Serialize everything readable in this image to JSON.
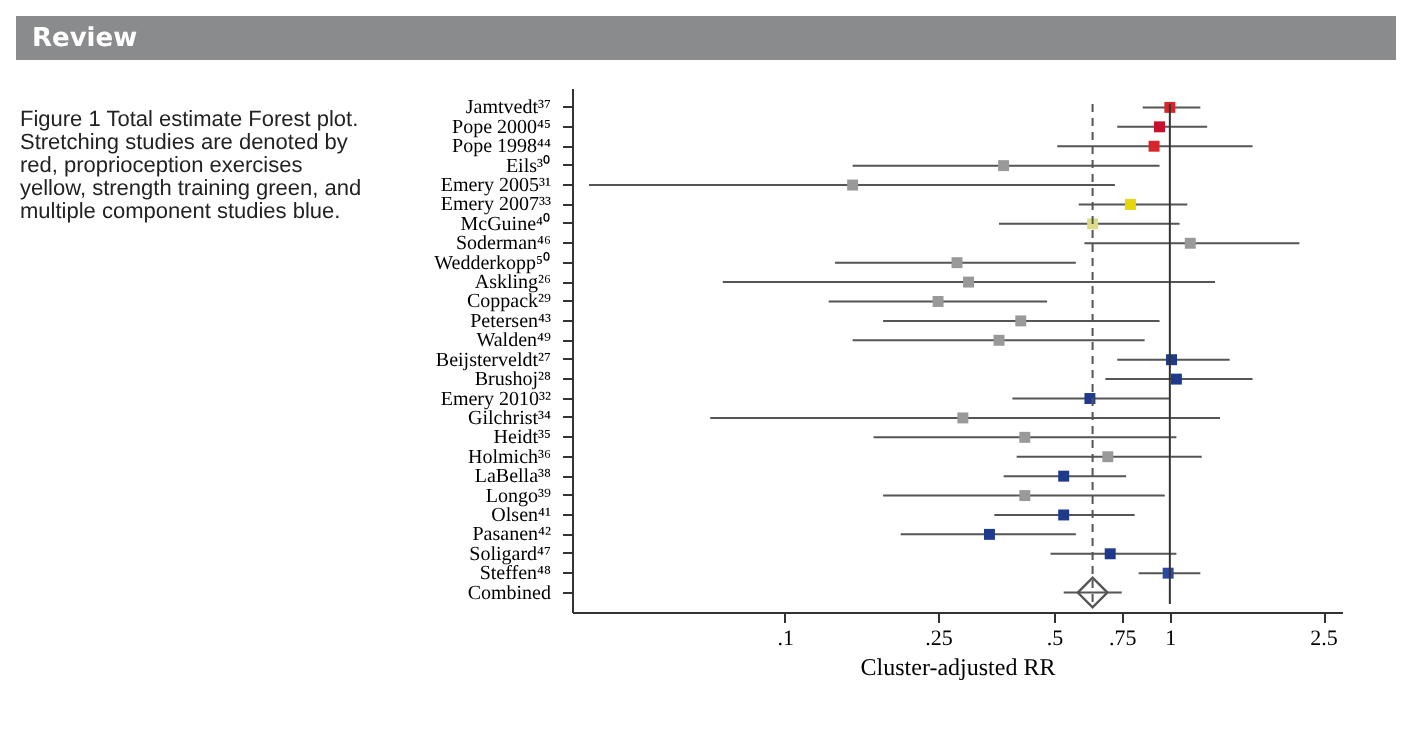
{
  "chart_data": {
    "type": "scatter",
    "orientation": "horizontal",
    "log": "x",
    "xlabel": "Cluster-adjusted RR",
    "grid": false,
    "categories": [
      "Jamtvedt³⁷",
      "Pope 2000⁴⁵",
      "Pope 1998⁴⁴",
      "Eils³⁰",
      "Emery 2005³¹",
      "Emery 2007³³",
      "McGuine⁴⁰",
      "Soderman⁴⁶",
      "Wedderkopp⁵⁰",
      "Askling²⁶",
      "Coppack²⁹",
      "Petersen⁴³",
      "Walden⁴⁹",
      "Beijsterveldt²⁷",
      "Brushoj²⁸",
      "Emery 2010³²",
      "Gilchrist³⁴",
      "Heidt³⁵",
      "Holmich³⁶",
      "LaBella³⁸",
      "Longo³⁹",
      "Olsen⁴¹",
      "Pasanen⁴²",
      "Soligard⁴⁷",
      "Steffen⁴⁸",
      "Combined"
    ],
    "series": [
      {
        "marker": "square",
        "values": [
          1.0,
          0.94,
          0.91,
          0.37,
          0.15,
          0.79,
          0.63,
          1.13,
          0.28,
          0.3,
          0.25,
          0.41,
          0.36,
          1.01,
          1.04,
          0.62,
          0.29,
          0.42,
          0.69,
          0.53,
          0.42,
          0.53,
          0.34,
          0.7,
          0.99,
          null
        ],
        "errors": [
          [
            0.85,
            1.2
          ],
          [
            0.73,
            1.25
          ],
          [
            0.51,
            1.64
          ],
          [
            0.15,
            0.94
          ],
          [
            0.031,
            0.72
          ],
          [
            0.58,
            1.11
          ],
          [
            0.36,
            1.06
          ],
          [
            0.6,
            2.17
          ],
          [
            0.135,
            0.57
          ],
          [
            0.069,
            1.31
          ],
          [
            0.13,
            0.48
          ],
          [
            0.18,
            0.94
          ],
          [
            0.15,
            0.86
          ],
          [
            0.73,
            1.43
          ],
          [
            0.68,
            1.64
          ],
          [
            0.39,
            1.0
          ],
          [
            0.064,
            1.35
          ],
          [
            0.17,
            1.04
          ],
          [
            0.4,
            1.21
          ],
          [
            0.37,
            0.77
          ],
          [
            0.18,
            0.97
          ],
          [
            0.35,
            0.81
          ],
          [
            0.2,
            0.57
          ],
          [
            0.49,
            1.04
          ],
          [
            0.83,
            1.2
          ],
          null
        ],
        "colors": [
          "#d7262b",
          "#c8102e",
          "#d7262b",
          "#999999",
          "#999999",
          "#e8d60c",
          "#dddd88",
          "#999999",
          "#999999",
          "#999999",
          "#999999",
          "#999999",
          "#999999",
          "#1f3a8a",
          "#1f3a8a",
          "#1f3a8a",
          "#999999",
          "#999999",
          "#999999",
          "#1f3a8a",
          "#999999",
          "#1f3a8a",
          "#1f3a8a",
          "#1f3a8a",
          "#2a4aa0",
          "#999999"
        ]
      },
      {
        "marker": "diamond",
        "color": "#555555",
        "values": [
          null,
          null,
          null,
          null,
          null,
          null,
          null,
          null,
          null,
          null,
          null,
          null,
          null,
          null,
          null,
          null,
          null,
          null,
          null,
          null,
          null,
          null,
          null,
          null,
          null,
          0.63
        ],
        "errors": [
          null,
          null,
          null,
          null,
          null,
          null,
          null,
          null,
          null,
          null,
          null,
          null,
          null,
          null,
          null,
          null,
          null,
          null,
          null,
          null,
          null,
          null,
          null,
          null,
          null,
          [
            0.53,
            0.75
          ]
        ]
      }
    ],
    "xlim": [
      0.028,
      2.8
    ],
    "xticks": [
      {
        "value": 0.1,
        "label": ".1"
      },
      {
        "value": 0.25,
        "label": ".25"
      },
      {
        "value": 0.5,
        "label": ".5"
      },
      {
        "value": 0.75,
        "label": ".75"
      },
      1,
      2.5
    ],
    "ref_lines": [
      {
        "axis": "x",
        "value": 1,
        "line_style": "solid",
        "color": "#333333"
      },
      {
        "axis": "x",
        "value": 0.63,
        "line_style": "dashed",
        "color": "#555555"
      }
    ],
    "annotations": [
      "Review",
      "Figure 1 Total estimate Forest plot. Stretching studies are denoted by red, proprioception exercises yellow, strength training green, and multiple component studies blue."
    ]
  }
}
